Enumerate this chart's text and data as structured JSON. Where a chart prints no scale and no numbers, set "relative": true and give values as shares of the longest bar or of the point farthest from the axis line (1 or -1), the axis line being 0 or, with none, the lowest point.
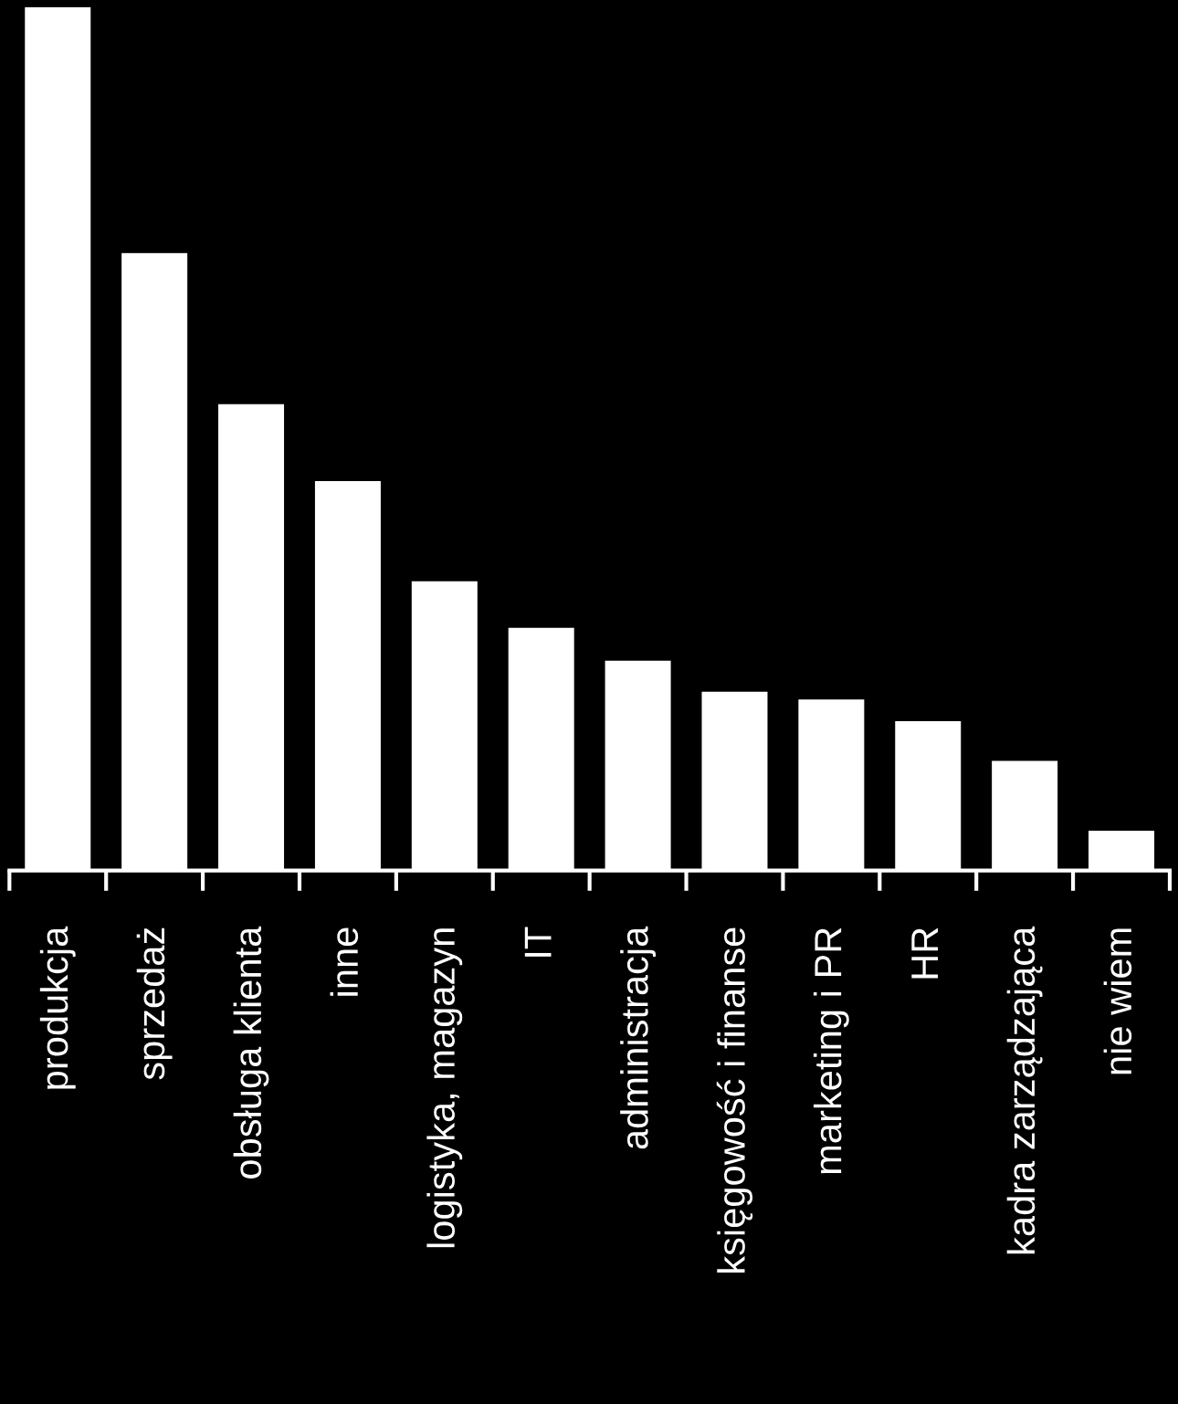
{
  "chart_data": {
    "type": "bar",
    "relative": true,
    "categories": [
      "produkcja",
      "sprzedaż",
      "obsługa klienta",
      "inne",
      "logistyka, magazyn",
      "IT",
      "administracja",
      "księgowość i finanse",
      "marketing i PR",
      "HR",
      "kadra zarządzająca",
      "nie wiem"
    ],
    "values": [
      1,
      0.715,
      0.54,
      0.451,
      0.335,
      0.281,
      0.243,
      0.207,
      0.198,
      0.173,
      0.127,
      0.046
    ],
    "color": "#ffffff",
    "grid": false,
    "legend": false
  }
}
